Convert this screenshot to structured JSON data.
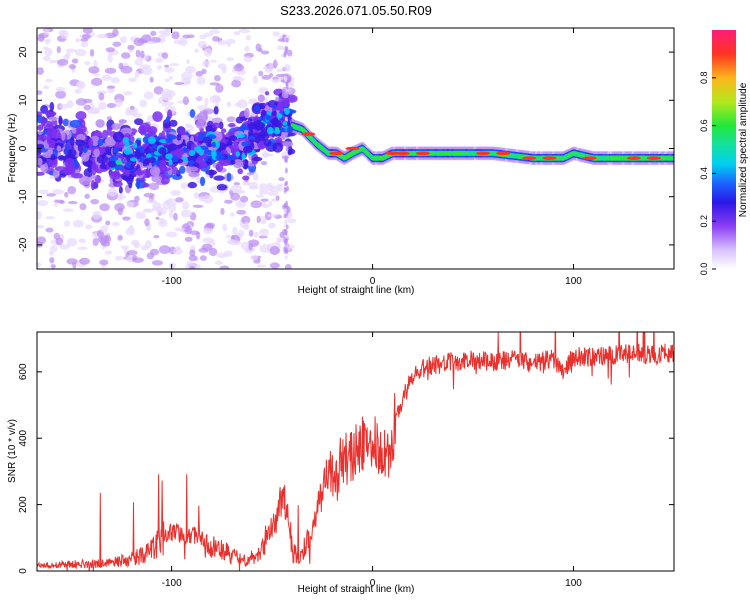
{
  "title": "S233.2026.071.05.50.R09",
  "colors": {
    "snr_line": "#e8302d",
    "frame": "#000000",
    "colormap": [
      "#ffffff",
      "#e8d9ff",
      "#b98cf2",
      "#7b2ff0",
      "#3a18e0",
      "#1a4dff",
      "#00c8ff",
      "#19e07a",
      "#2ee830",
      "#c8e81e",
      "#ff9a1a",
      "#ff3322",
      "#ff1e78"
    ]
  },
  "chart_data": [
    {
      "type": "heatmap",
      "name": "spectrogram",
      "xlabel": "Height of straight line (km)",
      "ylabel": "Frequency (Hz)",
      "xlim": [
        -167,
        150
      ],
      "ylim": [
        -25,
        25
      ],
      "xticks": [
        -100,
        0,
        100
      ],
      "yticks": [
        -20,
        -10,
        0,
        10,
        20
      ],
      "colorbar": {
        "label": "Normalized spectral amplitude",
        "range": [
          0,
          1
        ],
        "ticks": [
          0,
          0.2,
          0.4,
          0.6,
          0.8
        ],
        "tick_labels": [
          "0.0",
          "0.2",
          "0.4",
          "0.6",
          "0.8"
        ]
      },
      "ridge": {
        "x": [
          -167,
          -150,
          -130,
          -110,
          -90,
          -70,
          -60,
          -55,
          -48,
          -42,
          -35,
          -28,
          -22,
          -18,
          -14,
          -10,
          -5,
          0,
          5,
          10,
          20,
          40,
          60,
          80,
          90,
          95,
          100,
          110,
          130,
          150
        ],
        "y": [
          1,
          0,
          -1,
          -1,
          0,
          0,
          2,
          5,
          6,
          5,
          4,
          1,
          -1,
          -1,
          -2,
          -1,
          0,
          -2,
          -2,
          -1,
          -1,
          -1,
          -1,
          -2,
          -2,
          -2,
          -1,
          -2,
          -2,
          -2
        ]
      }
    },
    {
      "type": "line",
      "name": "snr",
      "xlabel": "Height of straight line (km)",
      "ylabel": "SNR (10 * v/v)",
      "xlim": [
        -167,
        150
      ],
      "ylim": [
        0,
        720
      ],
      "xticks": [
        -100,
        0,
        100
      ],
      "yticks": [
        0,
        200,
        400,
        600
      ],
      "x": [
        -167,
        -150,
        -130,
        -120,
        -110,
        -102,
        -98,
        -92,
        -88,
        -84,
        -80,
        -75,
        -70,
        -65,
        -60,
        -55,
        -52,
        -48,
        -45,
        -43,
        -40,
        -37,
        -35,
        -32,
        -30,
        -28,
        -25,
        -22,
        -18,
        -15,
        -12,
        -8,
        -5,
        -3,
        0,
        3,
        5,
        8,
        10,
        12,
        15,
        18,
        20,
        25,
        30,
        40,
        50,
        60,
        70,
        80,
        90,
        95,
        100,
        110,
        120,
        130,
        140,
        150
      ],
      "y": [
        15,
        20,
        25,
        35,
        60,
        110,
        120,
        100,
        110,
        100,
        70,
        60,
        45,
        35,
        40,
        70,
        120,
        150,
        230,
        200,
        60,
        40,
        50,
        90,
        120,
        180,
        240,
        300,
        270,
        330,
        350,
        360,
        380,
        340,
        420,
        380,
        350,
        360,
        400,
        460,
        520,
        560,
        580,
        610,
        620,
        630,
        635,
        630,
        640,
        625,
        640,
        605,
        645,
        645,
        650,
        655,
        650,
        660
      ]
    }
  ]
}
